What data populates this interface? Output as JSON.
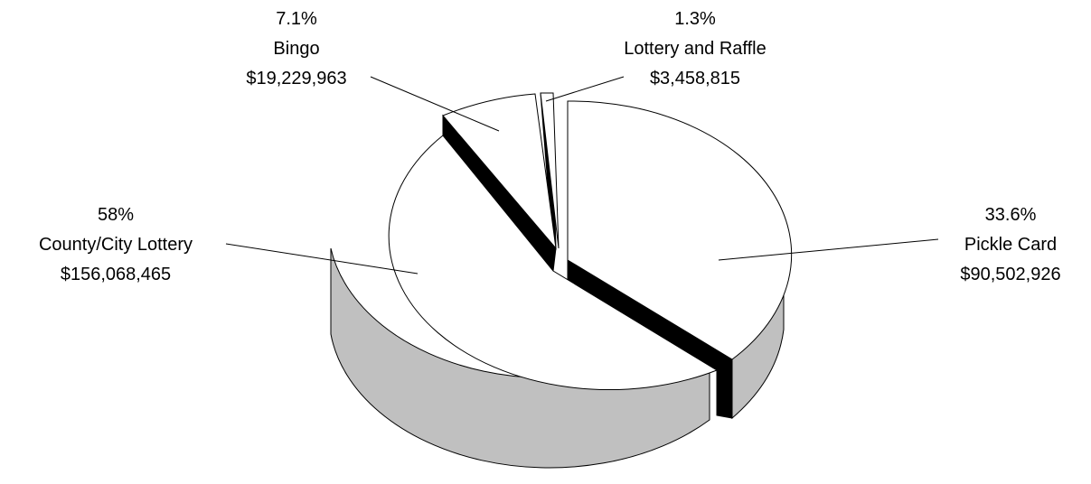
{
  "chart_data": {
    "type": "pie",
    "title": "",
    "three_d": true,
    "categories": [
      "Pickle Card",
      "County/City Lottery",
      "Bingo",
      "Lottery and Raffle"
    ],
    "values": [
      90502926,
      156068465,
      19229963,
      3458815
    ],
    "percent_labels": [
      "33.6%",
      "58%",
      "7.1%",
      "1.3%"
    ],
    "value_labels": [
      "$90,502,926",
      "$156,068,465",
      "$19,229,963",
      "$3,458,815"
    ],
    "legend": "none",
    "colors": {
      "top": "#ffffff",
      "side": "#c0c0c0",
      "edge": "#000000",
      "outline": "#000000"
    }
  }
}
